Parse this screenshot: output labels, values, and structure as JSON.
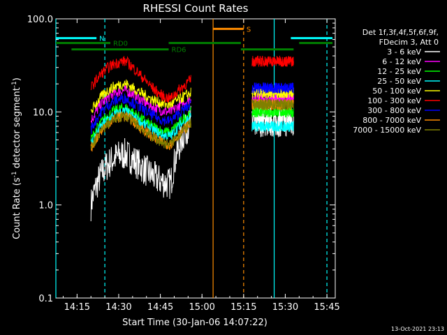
{
  "chart_data": {
    "type": "line",
    "title": "RHESSI Count Rates",
    "xlabel": "Start Time (30-Jan-06 14:07:22)",
    "ylabel_main": "Count Rate (s",
    "ylabel_sup1": "-1",
    "ylabel_mid": " detector segment",
    "ylabel_sup2": "-1",
    "ylabel_end": ")",
    "yscale": "log",
    "ylim": [
      0.1,
      100
    ],
    "xlim": [
      "14:07:22",
      "15:48"
    ],
    "x_ticks": [
      "14:15",
      "14:30",
      "14:45",
      "15:00",
      "15:15",
      "15:30",
      "15:45"
    ],
    "y_ticks": [
      "0.1",
      "1.0",
      "10.0",
      "100.0"
    ],
    "timestamp": "13-Oct-2021 23:13",
    "legend": {
      "header1": "Det 1f,3f,4f,5f,6f,9f,",
      "header2": "FDecim 3, Att 0"
    },
    "segments": [
      {
        "start": "14:20",
        "end": "14:56"
      },
      {
        "start": "15:18",
        "end": "15:33"
      }
    ],
    "series": [
      {
        "name": "3 - 6 keV",
        "color": "#ffffff",
        "start": 1.0,
        "peak": 3.5,
        "dip": 1.7,
        "end": 8.0,
        "seg2": 8.0
      },
      {
        "name": "6 - 12 keV",
        "color": "#ff00ff",
        "start": 8.0,
        "peak": 17.0,
        "dip": 10.0,
        "end": 14.0,
        "seg2": 14.0
      },
      {
        "name": "12 - 25 keV",
        "color": "#00ff00",
        "start": 5.0,
        "peak": 11.0,
        "dip": 6.0,
        "end": 10.0,
        "seg2": 10.0
      },
      {
        "name": "25 - 50 keV",
        "color": "#00ffff",
        "start": 4.5,
        "peak": 10.0,
        "dip": 5.5,
        "end": 9.0,
        "seg2": 7.0
      },
      {
        "name": "50 - 100 keV",
        "color": "#ffff00",
        "start": 10.0,
        "peak": 20.0,
        "dip": 12.0,
        "end": 16.0,
        "seg2": 16.0
      },
      {
        "name": "100 - 300 keV",
        "color": "#ff0000",
        "start": 18.0,
        "peak": 35.0,
        "dip": 14.0,
        "end": 22.0,
        "seg2": 35.0
      },
      {
        "name": "300 - 800 keV",
        "color": "#0000ff",
        "start": 6.5,
        "peak": 14.0,
        "dip": 8.0,
        "end": 12.0,
        "seg2": 18.0
      },
      {
        "name": "800 - 7000 keV",
        "color": "#ff8c00",
        "start": 4.0,
        "peak": 9.0,
        "dip": 4.5,
        "end": 7.5,
        "seg2": 12.0
      },
      {
        "name": "7000 - 15000 keV",
        "color": "#808000",
        "start": 4.0,
        "peak": 9.0,
        "dip": 4.5,
        "end": 7.5,
        "seg2": 12.0
      }
    ],
    "annotations": {
      "N": "N",
      "RD0": "RD0",
      "RD6": "RD6",
      "S": "S"
    },
    "bars": [
      {
        "label_key": "N",
        "color": "#00ffff",
        "y": 62.0,
        "ranges": [
          [
            "14:07:22",
            "14:22"
          ],
          [
            "15:32",
            "15:47"
          ]
        ]
      },
      {
        "label_key": "RD0",
        "color": "#008000",
        "y": 55.0,
        "ranges": [
          [
            "14:07:22",
            "14:27"
          ],
          [
            "14:48",
            "15:14"
          ],
          [
            "15:35",
            "15:47"
          ]
        ]
      },
      {
        "label_key": "RD6",
        "color": "#008000",
        "y": 47.0,
        "ranges": [
          [
            "14:13",
            "14:48"
          ],
          [
            "15:14",
            "15:33"
          ]
        ]
      },
      {
        "label_key": "S",
        "color": "#ff8c00",
        "y": 78.0,
        "ranges": [
          [
            "15:04",
            "15:15"
          ]
        ]
      }
    ],
    "vlines": [
      {
        "time": "14:07:22",
        "color": "#00ffff",
        "style": "solid"
      },
      {
        "time": "14:25",
        "color": "#00ffff",
        "style": "dashed"
      },
      {
        "time": "15:04",
        "color": "#ff8c00",
        "style": "solid"
      },
      {
        "time": "15:15",
        "color": "#ff8c00",
        "style": "dashed"
      },
      {
        "time": "15:26",
        "color": "#00ffff",
        "style": "solid"
      },
      {
        "time": "15:45",
        "color": "#00ffff",
        "style": "dashed"
      }
    ]
  }
}
